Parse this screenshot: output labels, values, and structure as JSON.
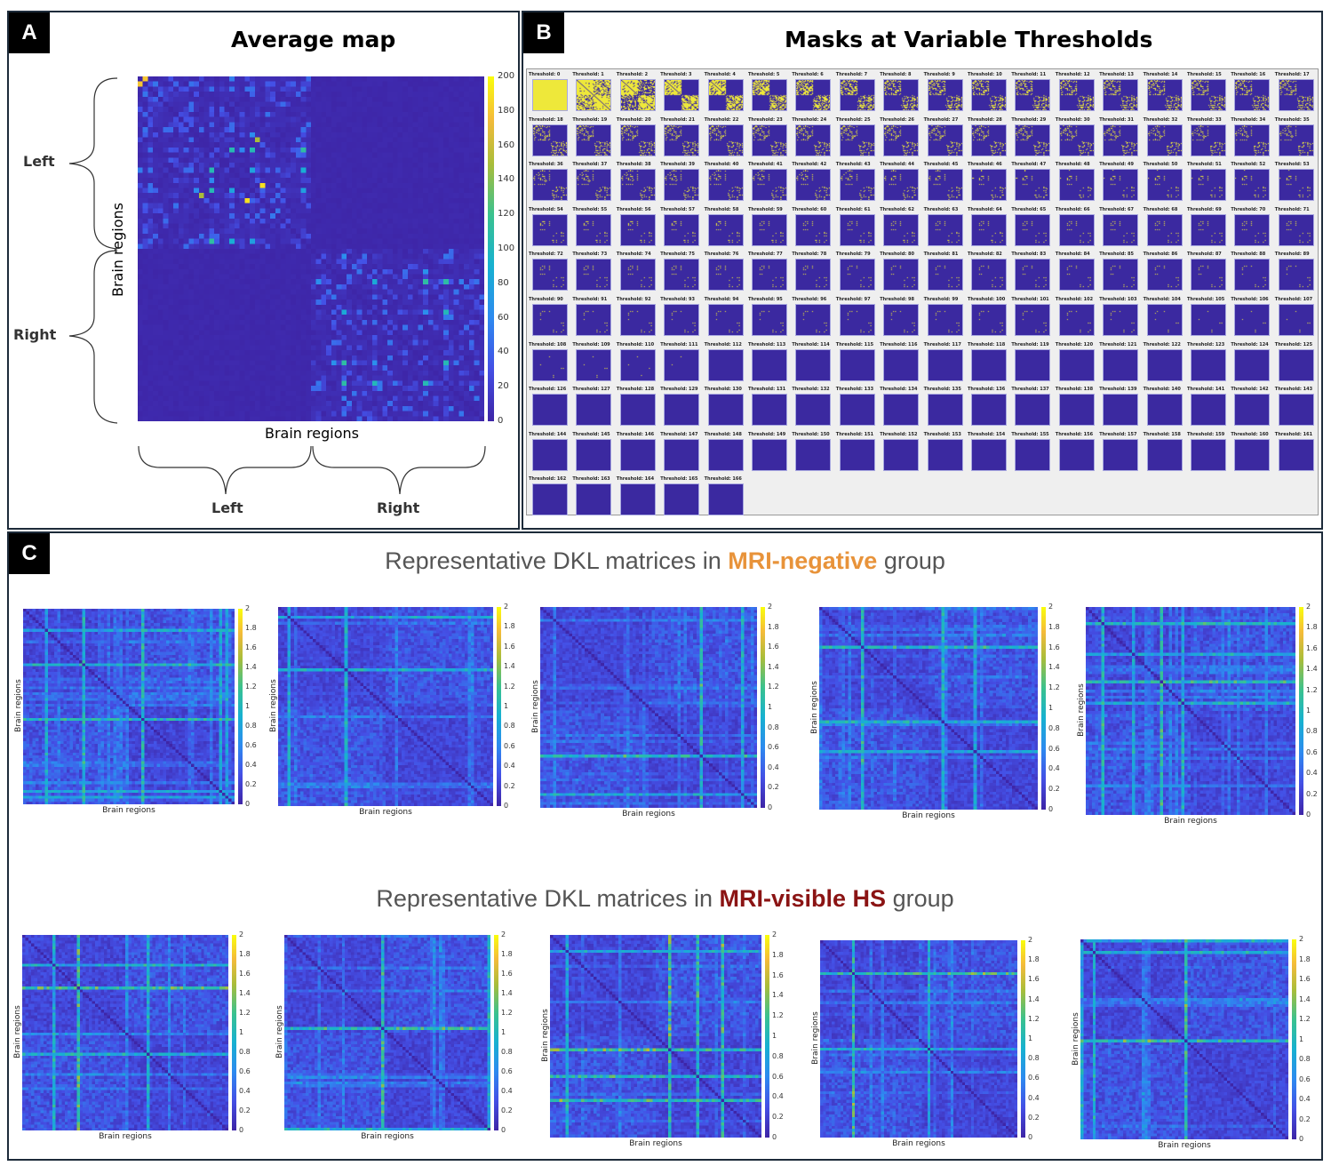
{
  "panel_a": {
    "label": "A",
    "title": "Average map",
    "ylabel": "Brain regions",
    "xlabel": "Brain regions",
    "left_label": "Left",
    "right_label": "Right",
    "bottom_left_label": "Left",
    "bottom_right_label": "Right"
  },
  "panel_b": {
    "label": "B",
    "title": "Masks at Variable Thresholds",
    "threshold_prefix": "Threshold:"
  },
  "panel_c": {
    "label": "C",
    "title_neg_pre": "Representative DKL matrices in ",
    "title_neg_em": "MRI-negative",
    "title_neg_post": " group",
    "title_vis_pre": "Representative DKL matrices in ",
    "title_vis_em": "MRI-visible HS",
    "title_vis_post": " group",
    "axis_label": "Brain regions"
  },
  "chart_data": [
    {
      "type": "heatmap",
      "title": "Average map",
      "xlabel": "Brain regions",
      "ylabel": "Brain regions",
      "colorbar_range": [
        0,
        200
      ],
      "colorbar_ticks": [
        "0",
        "20",
        "40",
        "60",
        "80",
        "100",
        "120",
        "140",
        "160",
        "180",
        "200"
      ],
      "colormap": "parula"
    },
    {
      "type": "heatmap",
      "title": "Masks at Variable Thresholds",
      "thresholds": [
        0,
        166
      ],
      "count": 167
    },
    {
      "type": "heatmap",
      "group": "MRI-negative",
      "panels": 5,
      "xlabel": "Brain regions",
      "ylabel": "Brain regions",
      "colorbar_range": [
        0,
        2
      ],
      "colorbar_ticks": [
        "0",
        "0.2",
        "0.4",
        "0.6",
        "0.8",
        "1",
        "1.2",
        "1.4",
        "1.6",
        "1.8",
        "2"
      ]
    },
    {
      "type": "heatmap",
      "group": "MRI-visible HS",
      "panels": 5,
      "xlabel": "Brain regions",
      "ylabel": "Brain regions",
      "colorbar_range": [
        0,
        2
      ],
      "colorbar_ticks": [
        "0",
        "0.2",
        "0.4",
        "0.6",
        "0.8",
        "1",
        "1.2",
        "1.4",
        "1.6",
        "1.8",
        "2"
      ]
    }
  ],
  "colors": {
    "accent_negative": "#e8933a",
    "accent_visible": "#8b1414"
  }
}
